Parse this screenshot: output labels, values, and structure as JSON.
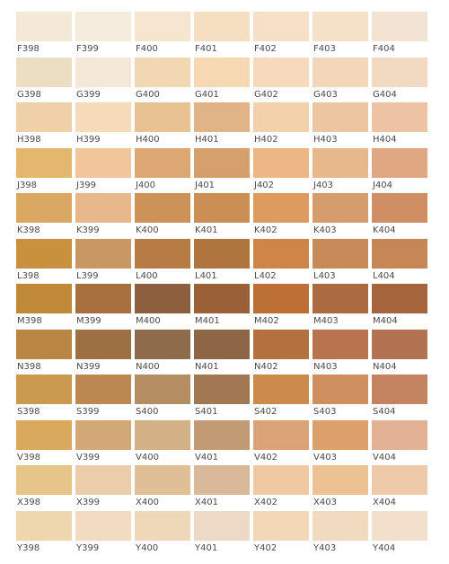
{
  "rows": [
    {
      "prefix": "F",
      "swatches": [
        {
          "code": "F398",
          "color": "#f4e8d7"
        },
        {
          "code": "F399",
          "color": "#f6ecde"
        },
        {
          "code": "F400",
          "color": "#f6e6d0"
        },
        {
          "code": "F401",
          "color": "#f6dec0"
        },
        {
          "code": "F402",
          "color": "#f6e1c8"
        },
        {
          "code": "F403",
          "color": "#f5e1c7"
        },
        {
          "code": "F404",
          "color": "#f3e3d2"
        }
      ]
    },
    {
      "prefix": "G",
      "swatches": [
        {
          "code": "G398",
          "color": "#ecdec3"
        },
        {
          "code": "G399",
          "color": "#f6e8d7"
        },
        {
          "code": "G400",
          "color": "#f2d7b3"
        },
        {
          "code": "G401",
          "color": "#f6d8b3"
        },
        {
          "code": "G402",
          "color": "#f6dabb"
        },
        {
          "code": "G403",
          "color": "#f2d7b8"
        },
        {
          "code": "G404",
          "color": "#f2dac2"
        }
      ]
    },
    {
      "prefix": "H",
      "swatches": [
        {
          "code": "H398",
          "color": "#f0d0a8"
        },
        {
          "code": "H399",
          "color": "#f6dbbb"
        },
        {
          "code": "H400",
          "color": "#e9c293"
        },
        {
          "code": "H401",
          "color": "#e0b486"
        },
        {
          "code": "H402",
          "color": "#f3d1ab"
        },
        {
          "code": "H403",
          "color": "#ebc6a0"
        },
        {
          "code": "H404",
          "color": "#edc3a4"
        }
      ]
    },
    {
      "prefix": "J",
      "swatches": [
        {
          "code": "J398",
          "color": "#e3b86e"
        },
        {
          "code": "J399",
          "color": "#f0c69a"
        },
        {
          "code": "J400",
          "color": "#dca772"
        },
        {
          "code": "J401",
          "color": "#d6a06c"
        },
        {
          "code": "J402",
          "color": "#ecb785"
        },
        {
          "code": "J403",
          "color": "#e6b88c"
        },
        {
          "code": "J404",
          "color": "#e0a882"
        }
      ]
    },
    {
      "prefix": "K",
      "swatches": [
        {
          "code": "K398",
          "color": "#dba863"
        },
        {
          "code": "K399",
          "color": "#e8b88c"
        },
        {
          "code": "K400",
          "color": "#cd9258"
        },
        {
          "code": "K401",
          "color": "#cb8e55"
        },
        {
          "code": "K402",
          "color": "#dd9b60"
        },
        {
          "code": "K403",
          "color": "#d59d6e"
        },
        {
          "code": "K404",
          "color": "#d08e64"
        }
      ]
    },
    {
      "prefix": "L",
      "swatches": [
        {
          "code": "L398",
          "color": "#c9913e"
        },
        {
          "code": "L399",
          "color": "#c99762"
        },
        {
          "code": "L400",
          "color": "#b77c46"
        },
        {
          "code": "L401",
          "color": "#b0743f"
        },
        {
          "code": "L402",
          "color": "#cf8448"
        },
        {
          "code": "L403",
          "color": "#c98a5a"
        },
        {
          "code": "L404",
          "color": "#c68656"
        }
      ]
    },
    {
      "prefix": "M",
      "swatches": [
        {
          "code": "M398",
          "color": "#c08938"
        },
        {
          "code": "M399",
          "color": "#a8703e"
        },
        {
          "code": "M400",
          "color": "#8c5f3f"
        },
        {
          "code": "M401",
          "color": "#9a6038"
        },
        {
          "code": "M402",
          "color": "#bd7036"
        },
        {
          "code": "M403",
          "color": "#ac6a41"
        },
        {
          "code": "M404",
          "color": "#a5643c"
        }
      ]
    },
    {
      "prefix": "N",
      "swatches": [
        {
          "code": "N398",
          "color": "#b98743"
        },
        {
          "code": "N399",
          "color": "#9d7043"
        },
        {
          "code": "N400",
          "color": "#8e6b4b"
        },
        {
          "code": "N401",
          "color": "#8d6646"
        },
        {
          "code": "N402",
          "color": "#b3713f"
        },
        {
          "code": "N403",
          "color": "#b8744e"
        },
        {
          "code": "N404",
          "color": "#b37352"
        }
      ]
    },
    {
      "prefix": "S",
      "swatches": [
        {
          "code": "S398",
          "color": "#ca9a50"
        },
        {
          "code": "S399",
          "color": "#bc8852"
        },
        {
          "code": "S400",
          "color": "#b58d62"
        },
        {
          "code": "S401",
          "color": "#a27853"
        },
        {
          "code": "S402",
          "color": "#cc8a4c"
        },
        {
          "code": "S403",
          "color": "#d08f5e"
        },
        {
          "code": "S404",
          "color": "#c48462"
        }
      ]
    },
    {
      "prefix": "V",
      "swatches": [
        {
          "code": "V398",
          "color": "#d9aa5e"
        },
        {
          "code": "V399",
          "color": "#d2a976"
        },
        {
          "code": "V400",
          "color": "#d3b085"
        },
        {
          "code": "V401",
          "color": "#c29b74"
        },
        {
          "code": "V402",
          "color": "#dba478"
        },
        {
          "code": "V403",
          "color": "#dca06c"
        },
        {
          "code": "V404",
          "color": "#e3b294"
        }
      ]
    },
    {
      "prefix": "X",
      "swatches": [
        {
          "code": "X398",
          "color": "#e7c488"
        },
        {
          "code": "X399",
          "color": "#eccda9"
        },
        {
          "code": "X400",
          "color": "#e0bf97"
        },
        {
          "code": "X401",
          "color": "#d9b999"
        },
        {
          "code": "X402",
          "color": "#f0c9a2"
        },
        {
          "code": "X403",
          "color": "#ecc193"
        },
        {
          "code": "X404",
          "color": "#efcaa8"
        }
      ]
    },
    {
      "prefix": "Y",
      "swatches": [
        {
          "code": "Y398",
          "color": "#eed7ae"
        },
        {
          "code": "Y399",
          "color": "#f1dcc1"
        },
        {
          "code": "Y400",
          "color": "#efd8b8"
        },
        {
          "code": "Y401",
          "color": "#ecdac6"
        },
        {
          "code": "Y402",
          "color": "#f3d8b8"
        },
        {
          "code": "Y403",
          "color": "#f0dac0"
        },
        {
          "code": "Y404",
          "color": "#f2e0cc"
        }
      ]
    }
  ]
}
